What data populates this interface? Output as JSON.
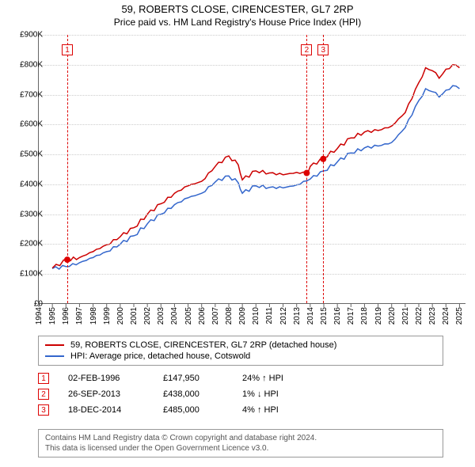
{
  "title": "59, ROBERTS CLOSE, CIRENCESTER, GL7 2RP",
  "subtitle": "Price paid vs. HM Land Registry's House Price Index (HPI)",
  "chart": {
    "type": "line",
    "background_color": "#ffffff",
    "grid_color": "#cccccc",
    "axis_color": "#666666",
    "x": {
      "label_fontsize": 10,
      "years": [
        1994,
        1995,
        1996,
        1997,
        1998,
        1999,
        2000,
        2001,
        2002,
        2003,
        2004,
        2005,
        2006,
        2007,
        2008,
        2009,
        2010,
        2011,
        2012,
        2013,
        2014,
        2015,
        2016,
        2017,
        2018,
        2019,
        2020,
        2021,
        2022,
        2023,
        2024,
        2025
      ],
      "xlim": [
        1994,
        2025.5
      ]
    },
    "y": {
      "label_fontsize": 10,
      "ticks": [
        0,
        100,
        200,
        300,
        400,
        500,
        600,
        700,
        800,
        900
      ],
      "tick_labels": [
        "£0",
        "£100K",
        "£200K",
        "£300K",
        "£400K",
        "£500K",
        "£600K",
        "£700K",
        "£800K",
        "£900K"
      ],
      "ylim": [
        0,
        900
      ]
    },
    "series": [
      {
        "name": "property",
        "legend_label": "59, ROBERTS CLOSE, CIRENCESTER, GL7 2RP (detached house)",
        "color": "#cc0000",
        "line_width": 1.5,
        "data": [
          [
            1995.0,
            120
          ],
          [
            1996.1,
            148
          ],
          [
            1997.0,
            155
          ],
          [
            1998.0,
            175
          ],
          [
            1999.0,
            198
          ],
          [
            2000.0,
            225
          ],
          [
            2001.0,
            255
          ],
          [
            2002.0,
            300
          ],
          [
            2003.0,
            335
          ],
          [
            2004.0,
            370
          ],
          [
            2005.0,
            395
          ],
          [
            2006.0,
            410
          ],
          [
            2007.0,
            460
          ],
          [
            2008.0,
            495
          ],
          [
            2008.7,
            465
          ],
          [
            2009.0,
            415
          ],
          [
            2010.0,
            445
          ],
          [
            2011.0,
            438
          ],
          [
            2012.0,
            432
          ],
          [
            2013.0,
            440
          ],
          [
            2013.74,
            438
          ],
          [
            2014.0,
            460
          ],
          [
            2014.96,
            485
          ],
          [
            2015.0,
            490
          ],
          [
            2016.0,
            520
          ],
          [
            2017.0,
            555
          ],
          [
            2018.0,
            575
          ],
          [
            2019.0,
            580
          ],
          [
            2020.0,
            595
          ],
          [
            2021.0,
            640
          ],
          [
            2022.0,
            740
          ],
          [
            2022.5,
            790
          ],
          [
            2023.0,
            780
          ],
          [
            2023.5,
            755
          ],
          [
            2024.0,
            785
          ],
          [
            2024.5,
            800
          ],
          [
            2025.0,
            790
          ]
        ]
      },
      {
        "name": "hpi",
        "legend_label": "HPI: Average price, detached house, Cotswold",
        "color": "#3366cc",
        "line_width": 1.5,
        "data": [
          [
            1995.0,
            118
          ],
          [
            1996.0,
            125
          ],
          [
            1997.0,
            138
          ],
          [
            1998.0,
            155
          ],
          [
            1999.0,
            175
          ],
          [
            2000.0,
            200
          ],
          [
            2001.0,
            228
          ],
          [
            2002.0,
            268
          ],
          [
            2003.0,
            300
          ],
          [
            2004.0,
            332
          ],
          [
            2005.0,
            355
          ],
          [
            2006.0,
            370
          ],
          [
            2007.0,
            408
          ],
          [
            2008.0,
            428
          ],
          [
            2008.7,
            405
          ],
          [
            2009.0,
            370
          ],
          [
            2010.0,
            395
          ],
          [
            2011.0,
            390
          ],
          [
            2012.0,
            388
          ],
          [
            2013.0,
            398
          ],
          [
            2014.0,
            418
          ],
          [
            2015.0,
            445
          ],
          [
            2016.0,
            475
          ],
          [
            2017.0,
            505
          ],
          [
            2018.0,
            522
          ],
          [
            2019.0,
            528
          ],
          [
            2020.0,
            540
          ],
          [
            2021.0,
            590
          ],
          [
            2022.0,
            680
          ],
          [
            2022.5,
            720
          ],
          [
            2023.0,
            710
          ],
          [
            2023.5,
            692
          ],
          [
            2024.0,
            715
          ],
          [
            2024.5,
            730
          ],
          [
            2025.0,
            720
          ]
        ]
      }
    ],
    "event_markers": [
      {
        "n": "1",
        "x": 1996.1,
        "y_top": 12
      },
      {
        "n": "2",
        "x": 2013.74,
        "y_top": 12
      },
      {
        "n": "3",
        "x": 2014.96,
        "y_top": 12
      }
    ],
    "sale_points": [
      {
        "x": 1996.1,
        "y": 148
      },
      {
        "x": 2013.74,
        "y": 438
      },
      {
        "x": 2014.96,
        "y": 485
      }
    ]
  },
  "legend": {
    "border_color": "#999999"
  },
  "events": [
    {
      "n": "1",
      "date": "02-FEB-1996",
      "price": "£147,950",
      "delta": "24% ↑ HPI"
    },
    {
      "n": "2",
      "date": "26-SEP-2013",
      "price": "£438,000",
      "delta": "1% ↓ HPI"
    },
    {
      "n": "3",
      "date": "18-DEC-2014",
      "price": "£485,000",
      "delta": "4% ↑ HPI"
    }
  ],
  "footer": {
    "line1": "Contains HM Land Registry data © Crown copyright and database right 2024.",
    "line2": "This data is licensed under the Open Government Licence v3.0."
  }
}
